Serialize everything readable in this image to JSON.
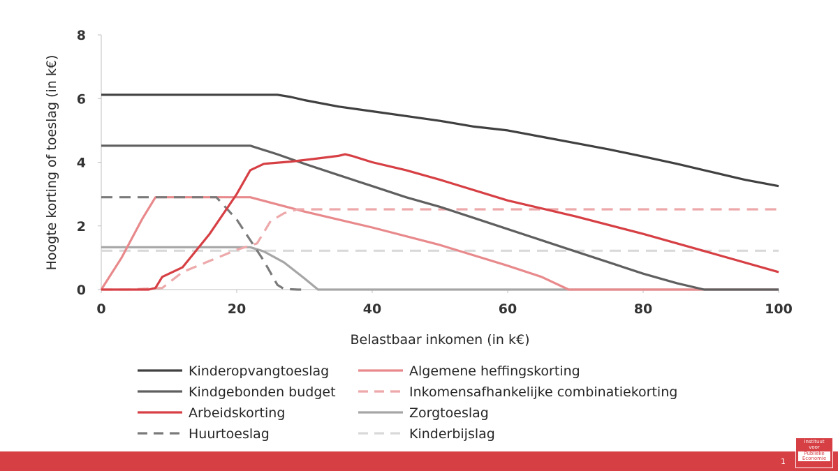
{
  "chart_data": {
    "type": "line",
    "title": "",
    "xlabel": "Belastbaar inkomen (in k€)",
    "ylabel": "Hoogte korting of toeslag (in k€)",
    "xlim": [
      0,
      100
    ],
    "ylim": [
      0,
      8
    ],
    "xticks": [
      0,
      20,
      40,
      60,
      80,
      100
    ],
    "yticks": [
      0,
      2,
      4,
      6,
      8
    ],
    "grid": false,
    "legend_position": "bottom",
    "series": [
      {
        "name": "Kinderopvangtoeslag",
        "color": "#404040",
        "dash": "solid",
        "x": [
          0,
          26,
          28,
          30,
          35,
          40,
          45,
          50,
          55,
          60,
          65,
          70,
          75,
          80,
          85,
          90,
          95,
          100
        ],
        "y": [
          6.12,
          6.12,
          6.05,
          5.95,
          5.75,
          5.6,
          5.45,
          5.3,
          5.12,
          5.0,
          4.8,
          4.6,
          4.4,
          4.18,
          3.95,
          3.7,
          3.45,
          3.25
        ]
      },
      {
        "name": "Kindgebonden budget",
        "color": "#5f5f5f",
        "dash": "solid",
        "x": [
          0,
          22,
          26,
          30,
          35,
          40,
          45,
          50,
          55,
          60,
          65,
          70,
          75,
          80,
          85,
          89,
          100
        ],
        "y": [
          4.52,
          4.52,
          4.25,
          3.95,
          3.6,
          3.25,
          2.9,
          2.6,
          2.25,
          1.9,
          1.55,
          1.2,
          0.85,
          0.5,
          0.2,
          0,
          0
        ]
      },
      {
        "name": "Arbeidskorting",
        "color": "#d63f44",
        "dash": "solid",
        "x": [
          0,
          7,
          8,
          9,
          12,
          16,
          20,
          22,
          24,
          28,
          32,
          35,
          36,
          37,
          40,
          45,
          50,
          60,
          70,
          80,
          90,
          100
        ],
        "y": [
          0,
          0,
          0.05,
          0.4,
          0.7,
          1.75,
          3.0,
          3.75,
          3.95,
          4.02,
          4.12,
          4.2,
          4.25,
          4.2,
          4.0,
          3.75,
          3.45,
          2.8,
          2.3,
          1.75,
          1.15,
          0.55
        ]
      },
      {
        "name": "Huurtoeslag",
        "color": "#7a7a7a",
        "dash": "dashed",
        "x": [
          0,
          17,
          20,
          24,
          26,
          27,
          29,
          30
        ],
        "y": [
          2.9,
          2.9,
          2.2,
          0.9,
          0.15,
          0.02,
          0,
          0
        ]
      },
      {
        "name": "Algemene heffingskorting",
        "color": "#e8898c",
        "dash": "solid",
        "x": [
          0,
          3,
          6,
          8,
          21,
          22,
          30,
          40,
          50,
          60,
          65,
          69,
          100
        ],
        "y": [
          0,
          1.0,
          2.2,
          2.9,
          2.9,
          2.9,
          2.45,
          1.95,
          1.4,
          0.75,
          0.4,
          0,
          0
        ]
      },
      {
        "name": "Inkomensafhankelijke combinatiekorting",
        "color": "#eda8aa",
        "dash": "dashed",
        "x": [
          0,
          4,
          9,
          12,
          16,
          20,
          23,
          24,
          25,
          27,
          29,
          100
        ],
        "y": [
          0,
          0,
          0.05,
          0.55,
          0.9,
          1.25,
          1.45,
          1.8,
          2.15,
          2.4,
          2.52,
          2.52
        ]
      },
      {
        "name": "Zorgtoeslag",
        "color": "#a6a6a6",
        "dash": "solid",
        "x": [
          0,
          22,
          24,
          27,
          30,
          32,
          100
        ],
        "y": [
          1.33,
          1.33,
          1.2,
          0.85,
          0.35,
          0,
          0
        ]
      },
      {
        "name": "Kinderbijslag",
        "color": "#d9d9d9",
        "dash": "dashed",
        "x": [
          0,
          100
        ],
        "y": [
          1.22,
          1.22
        ]
      }
    ]
  },
  "footer": {
    "page_number": "1",
    "logo_top": "Instituut\nvoor",
    "logo_bottom": "Publieke\nEconomie",
    "bar_color": "#d63f44"
  }
}
